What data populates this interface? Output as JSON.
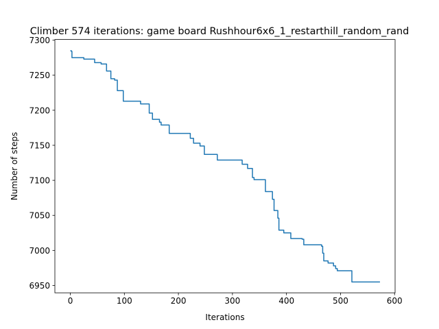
{
  "chart_data": {
    "type": "line",
    "title": "Climber 574 iterations: game board Rushhour6x6_1_restarthill_random_rand",
    "xlabel": "Iterations",
    "ylabel": "Number of steps",
    "xlim": [
      -28.6,
      601
    ],
    "ylim": [
      6939.5,
      7301
    ],
    "xticks": [
      0,
      100,
      200,
      300,
      400,
      500,
      600
    ],
    "yticks": [
      6950,
      7000,
      7050,
      7100,
      7150,
      7200,
      7250,
      7300
    ],
    "grid": false,
    "legend": "none",
    "line_color": "#1f77b4",
    "series": [
      {
        "step": "post",
        "points": [
          [
            0,
            7285
          ],
          [
            2,
            7284
          ],
          [
            3,
            7275
          ],
          [
            25,
            7273
          ],
          [
            45,
            7268
          ],
          [
            57,
            7266
          ],
          [
            67,
            7256
          ],
          [
            75,
            7245
          ],
          [
            82,
            7243
          ],
          [
            87,
            7228
          ],
          [
            98,
            7213
          ],
          [
            130,
            7209
          ],
          [
            146,
            7196
          ],
          [
            152,
            7187
          ],
          [
            165,
            7183
          ],
          [
            168,
            7179
          ],
          [
            183,
            7167
          ],
          [
            222,
            7160
          ],
          [
            228,
            7153
          ],
          [
            240,
            7149
          ],
          [
            248,
            7137
          ],
          [
            272,
            7129
          ],
          [
            318,
            7123
          ],
          [
            328,
            7117
          ],
          [
            337,
            7104
          ],
          [
            340,
            7101
          ],
          [
            361,
            7084
          ],
          [
            374,
            7073
          ],
          [
            377,
            7057
          ],
          [
            384,
            7046
          ],
          [
            386,
            7029
          ],
          [
            395,
            7025
          ],
          [
            408,
            7017
          ],
          [
            429,
            7016
          ],
          [
            432,
            7008
          ],
          [
            465,
            7006
          ],
          [
            467,
            6996
          ],
          [
            469,
            6985
          ],
          [
            477,
            6982
          ],
          [
            487,
            6978
          ],
          [
            491,
            6974
          ],
          [
            494,
            6971
          ],
          [
            521,
            6955
          ],
          [
            573,
            6955
          ]
        ]
      }
    ]
  }
}
